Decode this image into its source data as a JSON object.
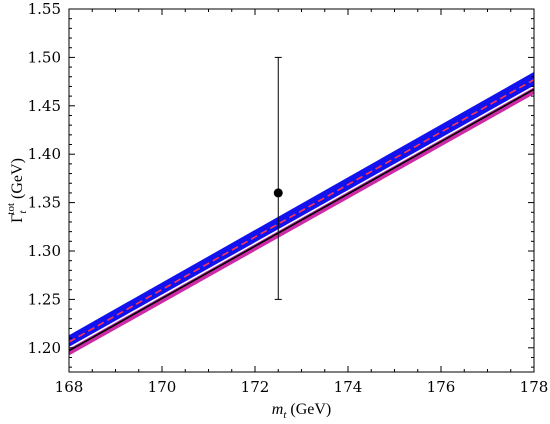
{
  "chart_data": {
    "type": "line",
    "title": "",
    "xlabel": {
      "symbol": "m",
      "sub": "t",
      "unit": " (GeV)"
    },
    "ylabel": {
      "symbol": "Γ",
      "sub": "t",
      "sup": "tot",
      "unit": " (GeV)"
    },
    "xlim": [
      168,
      178
    ],
    "ylim": [
      1.175,
      1.55
    ],
    "x_ticks": [
      168,
      170,
      172,
      174,
      176,
      178
    ],
    "y_ticks": [
      1.2,
      1.25,
      1.3,
      1.35,
      1.4,
      1.45,
      1.5,
      1.55
    ],
    "x_tick_labels": [
      "168",
      "170",
      "172",
      "174",
      "176",
      "178"
    ],
    "y_tick_labels": [
      "1.20",
      "1.25",
      "1.30",
      "1.35",
      "1.40",
      "1.45",
      "1.50",
      "1.55"
    ],
    "grid": false,
    "series": [
      {
        "kind": "band",
        "color": "#cc2aa6",
        "x": [
          168,
          178
        ],
        "lower": [
          1.192,
          1.462
        ],
        "upper": [
          1.207,
          1.478
        ]
      },
      {
        "kind": "band",
        "color": "#1212ee",
        "x": [
          168,
          178
        ],
        "lower": [
          1.199,
          1.469
        ],
        "upper": [
          1.213,
          1.485
        ]
      },
      {
        "kind": "line",
        "color": "#000000",
        "dash": "solid",
        "x": [
          168,
          178
        ],
        "y": [
          1.197,
          1.467
        ]
      },
      {
        "kind": "line",
        "color": "#ffffff",
        "dash": "solid",
        "x": [
          168,
          178
        ],
        "y": [
          1.2,
          1.47
        ]
      },
      {
        "kind": "line",
        "color": "#ff3355",
        "dash": "dashed",
        "x": [
          168,
          178
        ],
        "y": [
          1.206,
          1.477
        ]
      },
      {
        "kind": "point_errorbar",
        "color": "#000000",
        "x": 172.5,
        "y": 1.36,
        "yerr_low": 1.25,
        "yerr_high": 1.5
      }
    ]
  }
}
